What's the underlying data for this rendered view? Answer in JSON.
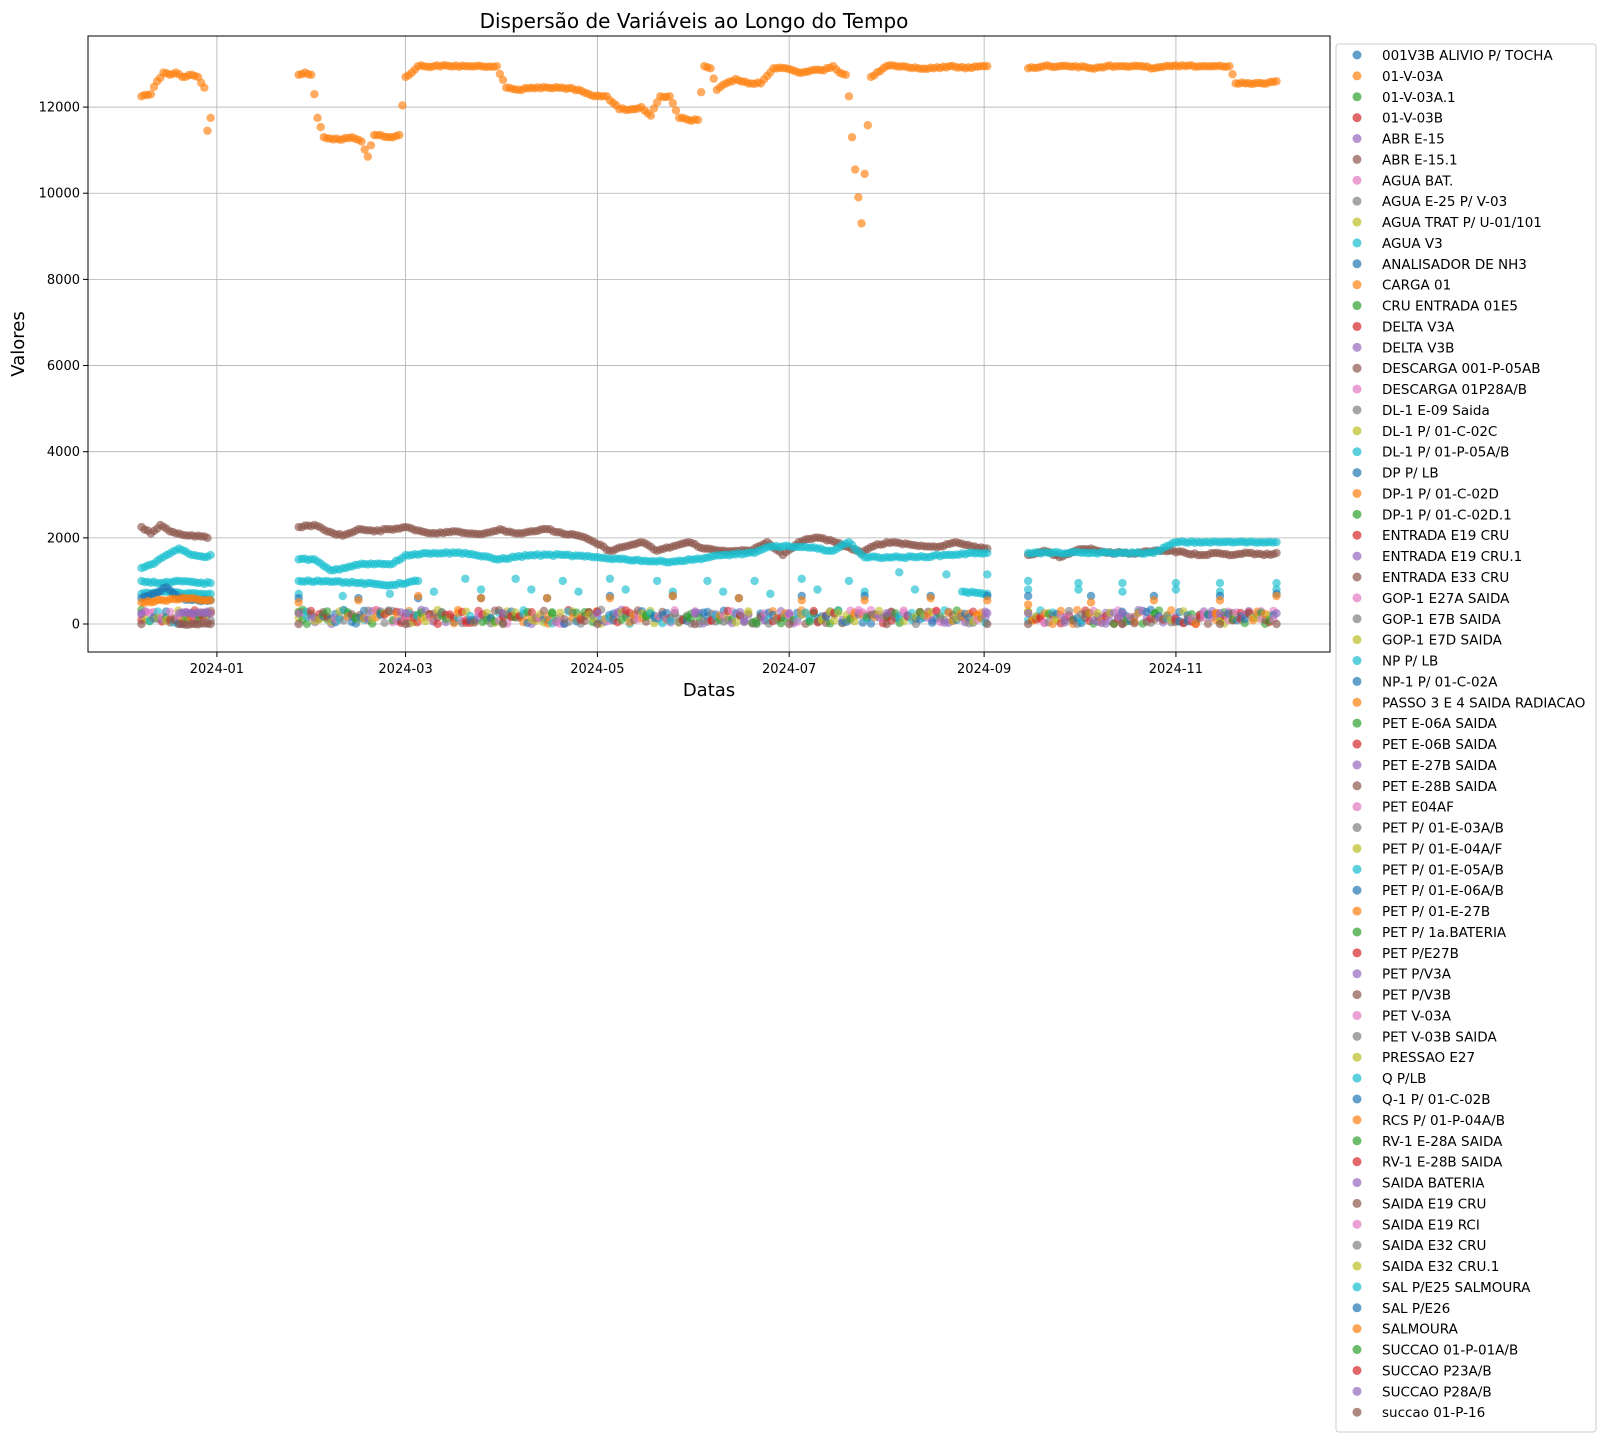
{
  "chart_data": {
    "type": "scatter",
    "title": "Dispersão de Variáveis ao Longo do Tempo",
    "xlabel": "Datas",
    "ylabel": "Valores",
    "xlim": [
      "2023-11-21",
      "2024-12-20"
    ],
    "ylim": [
      -650,
      13650
    ],
    "grid": true,
    "legend_position": "outside-right",
    "x_ticks": [
      "2024-01",
      "2024-03",
      "2024-05",
      "2024-07",
      "2024-09",
      "2024-11"
    ],
    "y_ticks": [
      0,
      2000,
      4000,
      6000,
      8000,
      10000,
      12000
    ],
    "palette": [
      "#1f77b4",
      "#ff7f0e",
      "#2ca02c",
      "#d62728",
      "#9467bd",
      "#8c564b",
      "#e377c2",
      "#7f7f7f",
      "#bcbd22",
      "#17becf"
    ],
    "legend": [
      "001V3B ALIVIO P/ TOCHA",
      "01-V-03A",
      "01-V-03A.1",
      "01-V-03B",
      "ABR E-15",
      "ABR E-15.1",
      "AGUA BAT.",
      "AGUA E-25 P/ V-03",
      "AGUA TRAT P/ U-01/101",
      "AGUA V3",
      "ANALISADOR DE NH3",
      "CARGA 01",
      "CRU ENTRADA 01E5",
      "DELTA V3A",
      "DELTA V3B",
      "DESCARGA 001-P-05AB",
      "DESCARGA 01P28A/B",
      "DL-1 E-09 Saida",
      "DL-1 P/ 01-C-02C",
      "DL-1 P/ 01-P-05A/B",
      "DP P/ LB",
      "DP-1 P/ 01-C-02D",
      "DP-1 P/ 01-C-02D.1",
      "ENTRADA E19 CRU",
      "ENTRADA E19 CRU.1",
      "ENTRADA E33 CRU",
      "GOP-1 E27A SAIDA",
      "GOP-1 E7B SAIDA",
      "GOP-1 E7D SAIDA",
      "NP P/ LB",
      "NP-1 P/ 01-C-02A",
      "PASSO 3 E 4 SAIDA RADIACAO",
      "PET E-06A SAIDA",
      "PET E-06B SAIDA",
      "PET E-27B SAIDA",
      "PET E-28B SAIDA",
      "PET E04AF",
      "PET P/ 01-E-03A/B",
      "PET P/ 01-E-04A/F",
      "PET P/ 01-E-05A/B",
      "PET P/ 01-E-06A/B",
      "PET P/ 01-E-27B",
      "PET P/ 1a.BATERIA",
      "PET P/E27B",
      "PET P/V3A",
      "PET P/V3B",
      "PET V-03A",
      "PET V-03B SAIDA",
      "PRESSAO E27",
      "Q P/LB",
      "Q-1 P/ 01-C-02B",
      "RCS P/ 01-P-04A/B",
      "RV-1 E-28A SAIDA",
      "RV-1 E-28B SAIDA",
      "SAIDA BATERIA",
      "SAIDA E19 CRU",
      "SAIDA E19 RCI",
      "SAIDA E32 CRU",
      "SAIDA E32 CRU.1",
      "SAL P/E25 SALMOURA",
      "SAL P/E26",
      "SALMOURA",
      "SUCCAO 01-P-01A/B",
      "SUCCAO P23A/B",
      "SUCCAO P28A/B",
      "succao 01-P-16"
    ],
    "data_segments": [
      [
        "2023-12-08",
        "2023-12-31"
      ],
      [
        "2024-01-27",
        "2024-09-02"
      ],
      [
        "2024-09-15",
        "2024-12-03"
      ]
    ],
    "series": [
      {
        "name": "01-V-03A",
        "x": [
          "2023-12-08",
          "2023-12-11",
          "2023-12-13",
          "2023-12-15",
          "2023-12-17",
          "2023-12-19",
          "2023-12-21",
          "2023-12-24",
          "2023-12-26",
          "2023-12-28",
          "2023-12-29",
          "2023-12-30",
          "2024-01-27",
          "2024-01-29",
          "2024-01-31",
          "2024-02-01",
          "2024-02-02",
          "2024-02-04",
          "2024-02-07",
          "2024-02-10",
          "2024-02-13",
          "2024-02-16",
          "2024-02-18",
          "2024-02-20",
          "2024-02-22",
          "2024-02-25",
          "2024-02-28",
          "2024-03-01",
          "2024-03-03",
          "2024-03-05",
          "2024-03-10",
          "2024-03-15",
          "2024-03-20",
          "2024-03-25",
          "2024-03-30",
          "2024-04-02",
          "2024-04-06",
          "2024-04-10",
          "2024-04-15",
          "2024-04-20",
          "2024-04-25",
          "2024-04-30",
          "2024-05-04",
          "2024-05-08",
          "2024-05-12",
          "2024-05-15",
          "2024-05-18",
          "2024-05-21",
          "2024-05-24",
          "2024-05-27",
          "2024-05-30",
          "2024-06-02",
          "2024-06-04",
          "2024-06-06",
          "2024-06-08",
          "2024-06-11",
          "2024-06-14",
          "2024-06-18",
          "2024-06-22",
          "2024-06-26",
          "2024-06-30",
          "2024-07-04",
          "2024-07-08",
          "2024-07-12",
          "2024-07-15",
          "2024-07-17",
          "2024-07-19",
          "2024-07-20",
          "2024-07-21",
          "2024-07-22",
          "2024-07-24",
          "2024-07-27",
          "2024-08-01",
          "2024-08-06",
          "2024-08-11",
          "2024-08-16",
          "2024-08-21",
          "2024-08-26",
          "2024-08-31",
          "2024-09-02",
          "2024-09-15",
          "2024-09-20",
          "2024-09-25",
          "2024-09-30",
          "2024-10-05",
          "2024-10-10",
          "2024-10-15",
          "2024-10-20",
          "2024-10-25",
          "2024-10-30",
          "2024-11-04",
          "2024-11-09",
          "2024-11-14",
          "2024-11-18",
          "2024-11-20",
          "2024-11-23",
          "2024-11-26",
          "2024-11-30",
          "2024-12-03"
        ],
        "y": [
          12250,
          12300,
          12600,
          12800,
          12750,
          12800,
          12700,
          12750,
          12700,
          12450,
          11450,
          11750,
          12750,
          12800,
          12750,
          12300,
          11750,
          11300,
          11250,
          11250,
          11300,
          11200,
          10850,
          11350,
          11350,
          11300,
          11350,
          12700,
          12800,
          12950,
          12950,
          12950,
          12950,
          12950,
          12950,
          12450,
          12400,
          12450,
          12450,
          12450,
          12400,
          12250,
          12250,
          11950,
          11950,
          12000,
          11800,
          12250,
          12250,
          11750,
          11700,
          11700,
          12950,
          12900,
          12400,
          12550,
          12650,
          12550,
          12550,
          12900,
          12900,
          12800,
          12850,
          12850,
          12950,
          12800,
          12750,
          12250,
          11300,
          10550,
          9300,
          12700,
          12950,
          12950,
          12900,
          12900,
          12950,
          12900,
          12950,
          12950,
          12900,
          12950,
          12950,
          12950,
          12900,
          12950,
          12950,
          12950,
          12900,
          12950,
          12950,
          12950,
          12950,
          12950,
          12550,
          12550,
          12550,
          12550,
          12600
        ]
      },
      {
        "name": "ABR E-15.1",
        "x": [
          "2023-12-08",
          "2023-12-11",
          "2023-12-14",
          "2023-12-17",
          "2023-12-20",
          "2023-12-23",
          "2023-12-26",
          "2023-12-29",
          "2024-01-27",
          "2024-02-01",
          "2024-02-05",
          "2024-02-10",
          "2024-02-15",
          "2024-02-20",
          "2024-02-25",
          "2024-03-01",
          "2024-03-06",
          "2024-03-11",
          "2024-03-16",
          "2024-03-21",
          "2024-03-26",
          "2024-03-31",
          "2024-04-05",
          "2024-04-10",
          "2024-04-15",
          "2024-04-20",
          "2024-04-25",
          "2024-04-30",
          "2024-05-05",
          "2024-05-10",
          "2024-05-15",
          "2024-05-20",
          "2024-05-25",
          "2024-05-30",
          "2024-06-04",
          "2024-06-09",
          "2024-06-14",
          "2024-06-19",
          "2024-06-24",
          "2024-06-29",
          "2024-07-04",
          "2024-07-09",
          "2024-07-14",
          "2024-07-19",
          "2024-07-24",
          "2024-07-29",
          "2024-08-03",
          "2024-08-08",
          "2024-08-13",
          "2024-08-18",
          "2024-08-23",
          "2024-08-28",
          "2024-09-02",
          "2024-09-15",
          "2024-09-20",
          "2024-09-25",
          "2024-09-30",
          "2024-10-05",
          "2024-10-10",
          "2024-10-15",
          "2024-10-20",
          "2024-10-25",
          "2024-10-30",
          "2024-11-04",
          "2024-11-09",
          "2024-11-14",
          "2024-11-19",
          "2024-11-24",
          "2024-11-29",
          "2024-12-03"
        ],
        "y": [
          2250,
          2100,
          2300,
          2150,
          2100,
          2050,
          2050,
          2000,
          2250,
          2300,
          2150,
          2050,
          2200,
          2150,
          2200,
          2250,
          2150,
          2100,
          2150,
          2100,
          2100,
          2200,
          2100,
          2150,
          2200,
          2100,
          2050,
          1900,
          1700,
          1800,
          1900,
          1700,
          1800,
          1900,
          1750,
          1700,
          1700,
          1700,
          1900,
          1600,
          1900,
          2000,
          1950,
          1800,
          1650,
          1850,
          1900,
          1850,
          1800,
          1800,
          1900,
          1800,
          1750,
          1600,
          1700,
          1550,
          1700,
          1750,
          1650,
          1650,
          1650,
          1700,
          1700,
          1650,
          1600,
          1650,
          1600,
          1650,
          1600,
          1650
        ]
      },
      {
        "name": "NP P/ LB",
        "x": [
          "2023-12-08",
          "2023-12-12",
          "2023-12-16",
          "2023-12-20",
          "2023-12-24",
          "2023-12-28",
          "2023-12-30",
          "2024-01-27",
          "2024-02-01",
          "2024-02-06",
          "2024-02-11",
          "2024-02-16",
          "2024-02-21",
          "2024-02-26",
          "2024-03-01",
          "2024-03-10",
          "2024-03-20",
          "2024-03-30",
          "2024-04-10",
          "2024-04-20",
          "2024-04-30",
          "2024-05-10",
          "2024-05-20",
          "2024-05-25",
          "2024-06-01",
          "2024-06-10",
          "2024-06-20",
          "2024-06-25",
          "2024-07-01",
          "2024-07-10",
          "2024-07-15",
          "2024-07-20",
          "2024-07-25",
          "2024-08-01",
          "2024-08-10",
          "2024-08-20",
          "2024-08-30",
          "2024-09-02",
          "2024-09-15",
          "2024-09-25",
          "2024-10-05",
          "2024-10-15",
          "2024-10-25",
          "2024-11-01",
          "2024-11-10",
          "2024-11-20",
          "2024-11-30",
          "2024-12-03"
        ],
        "y": [
          1300,
          1400,
          1600,
          1750,
          1600,
          1550,
          1600,
          1500,
          1500,
          1250,
          1300,
          1400,
          1400,
          1400,
          1600,
          1650,
          1650,
          1500,
          1600,
          1600,
          1550,
          1500,
          1450,
          1450,
          1500,
          1600,
          1650,
          1800,
          1800,
          1750,
          1700,
          1900,
          1550,
          1550,
          1550,
          1600,
          1650,
          1650,
          1650,
          1650,
          1650,
          1650,
          1650,
          1900,
          1900,
          1900,
          1900,
          1900
        ]
      },
      {
        "name": "AGUA V3",
        "x": [
          "2023-12-08",
          "2023-12-14",
          "2023-12-20",
          "2023-12-26",
          "2023-12-30",
          "2024-01-27",
          "2024-02-05",
          "2024-02-15",
          "2024-02-25",
          "2024-03-05",
          "2024-03-20",
          "2024-04-05",
          "2024-04-20",
          "2024-05-05",
          "2024-05-20",
          "2024-06-05",
          "2024-06-20",
          "2024-07-05",
          "2024-07-20",
          "2024-08-05",
          "2024-08-20",
          "2024-09-02",
          "2024-09-15",
          "2024-10-01",
          "2024-10-15",
          "2024-11-01",
          "2024-11-15",
          "2024-12-03"
        ],
        "y": [
          1000,
          950,
          1000,
          950,
          950,
          1000,
          1000,
          950,
          900,
          1000,
          1050,
          1050,
          1000,
          1050,
          1000,
          1000,
          1000,
          1050,
          1000,
          1200,
          1150,
          1150,
          1000,
          950,
          950,
          950,
          950,
          950
        ]
      },
      {
        "name": "Q P/LB",
        "x": [
          "2023-12-08",
          "2023-12-15",
          "2023-12-22",
          "2023-12-30",
          "2024-01-27",
          "2024-02-10",
          "2024-02-25",
          "2024-03-10",
          "2024-03-25",
          "2024-04-10",
          "2024-04-25",
          "2024-05-10",
          "2024-05-25",
          "2024-06-10",
          "2024-06-25",
          "2024-07-10",
          "2024-07-25",
          "2024-08-10",
          "2024-08-25",
          "2024-09-02",
          "2024-09-15",
          "2024-10-01",
          "2024-10-15",
          "2024-11-01",
          "2024-11-15",
          "2024-12-03"
        ],
        "y": [
          700,
          750,
          700,
          700,
          700,
          650,
          700,
          750,
          800,
          800,
          750,
          800,
          750,
          750,
          700,
          800,
          750,
          800,
          750,
          700,
          800,
          800,
          750,
          800,
          750,
          800
        ]
      },
      {
        "name": "001V3B ALIVIO P/ TOCHA",
        "x": [
          "2023-12-08",
          "2023-12-12",
          "2023-12-16",
          "2023-12-20",
          "2023-12-26",
          "2023-12-30",
          "2024-01-27",
          "2024-02-15",
          "2024-03-05",
          "2024-03-25",
          "2024-04-15",
          "2024-05-05",
          "2024-05-25",
          "2024-06-15",
          "2024-07-05",
          "2024-07-25",
          "2024-08-15",
          "2024-09-02",
          "2024-09-15",
          "2024-10-05",
          "2024-10-25",
          "2024-11-15",
          "2024-12-03"
        ],
        "y": [
          600,
          700,
          850,
          600,
          550,
          550,
          600,
          600,
          600,
          600,
          600,
          650,
          650,
          600,
          650,
          650,
          650,
          650,
          650,
          650,
          650,
          650,
          700
        ]
      },
      {
        "name": "CARGA 01",
        "x": [
          "2023-12-08",
          "2023-12-15",
          "2023-12-22",
          "2023-12-30",
          "2024-01-27",
          "2024-02-15",
          "2024-03-05",
          "2024-03-25",
          "2024-04-15",
          "2024-05-05",
          "2024-05-25",
          "2024-06-15",
          "2024-07-05",
          "2024-07-25",
          "2024-08-15",
          "2024-09-02",
          "2024-09-15",
          "2024-10-05",
          "2024-10-25",
          "2024-11-15",
          "2024-12-03"
        ],
        "y": [
          500,
          550,
          600,
          550,
          500,
          550,
          650,
          600,
          600,
          600,
          650,
          600,
          550,
          550,
          600,
          550,
          450,
          500,
          550,
          550,
          650
        ]
      },
      {
        "name": "SUCCAO P28A/B",
        "x": [
          "2023-12-08",
          "2023-12-20",
          "2023-12-30",
          "2024-01-27",
          "2024-03-01",
          "2024-04-01",
          "2024-05-01",
          "2024-06-01",
          "2024-07-01",
          "2024-08-01",
          "2024-09-02",
          "2024-09-15",
          "2024-10-15",
          "2024-11-15",
          "2024-12-03"
        ],
        "y": [
          250,
          250,
          250,
          250,
          250,
          250,
          250,
          250,
          250,
          250,
          250,
          250,
          250,
          250,
          250
        ]
      },
      {
        "name": "succao 01-P-16",
        "x": [
          "2023-12-08",
          "2023-12-20",
          "2023-12-30",
          "2024-01-27",
          "2024-03-01",
          "2024-04-01",
          "2024-05-01",
          "2024-06-01",
          "2024-07-01",
          "2024-08-01",
          "2024-09-02",
          "2024-09-15",
          "2024-10-15",
          "2024-11-15",
          "2024-12-03"
        ],
        "y": [
          0,
          0,
          0,
          0,
          0,
          0,
          0,
          0,
          0,
          0,
          0,
          0,
          0,
          0,
          0
        ]
      }
    ]
  }
}
